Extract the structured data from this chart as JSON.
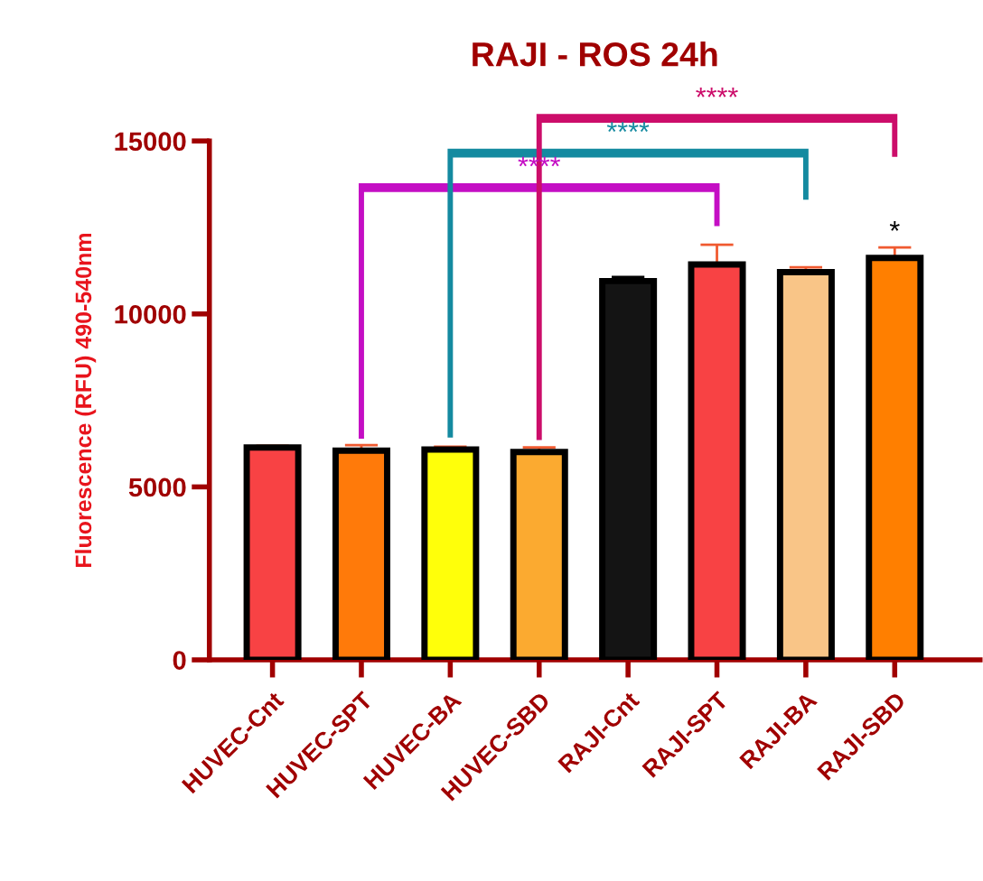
{
  "chart_data": {
    "type": "bar",
    "title": "RAJI - ROS 24h",
    "ylabel": "Fluorescence (RFU) 490-540nm",
    "categories": [
      "HUVEC-Cnt",
      "HUVEC-SPT",
      "HUVEC-BA",
      "HUVEC-SBD",
      "RAJI-Cnt",
      "RAJI-SPT",
      "RAJI-BA",
      "RAJI-SBD"
    ],
    "values": [
      6140,
      6050,
      6080,
      6010,
      10950,
      11430,
      11210,
      11620
    ],
    "errors": [
      [
        6140,
        6190
      ],
      [
        6050,
        6210
      ],
      [
        6080,
        6160
      ],
      [
        6010,
        6140
      ],
      [
        10950,
        11070
      ],
      [
        11430,
        12000
      ],
      [
        11210,
        11350
      ],
      [
        11620,
        11920
      ]
    ],
    "colors": [
      "#f84244",
      "#ff7a0a",
      "#ffff0a",
      "#fbaa30",
      "#141414",
      "#f84244",
      "#f9c587",
      "#ff7f00"
    ],
    "ylim": [
      0,
      15000
    ],
    "yticks": [
      0,
      5000,
      10000,
      15000
    ],
    "grid": false,
    "annotations": [
      "****",
      "****",
      "****",
      "*"
    ]
  }
}
